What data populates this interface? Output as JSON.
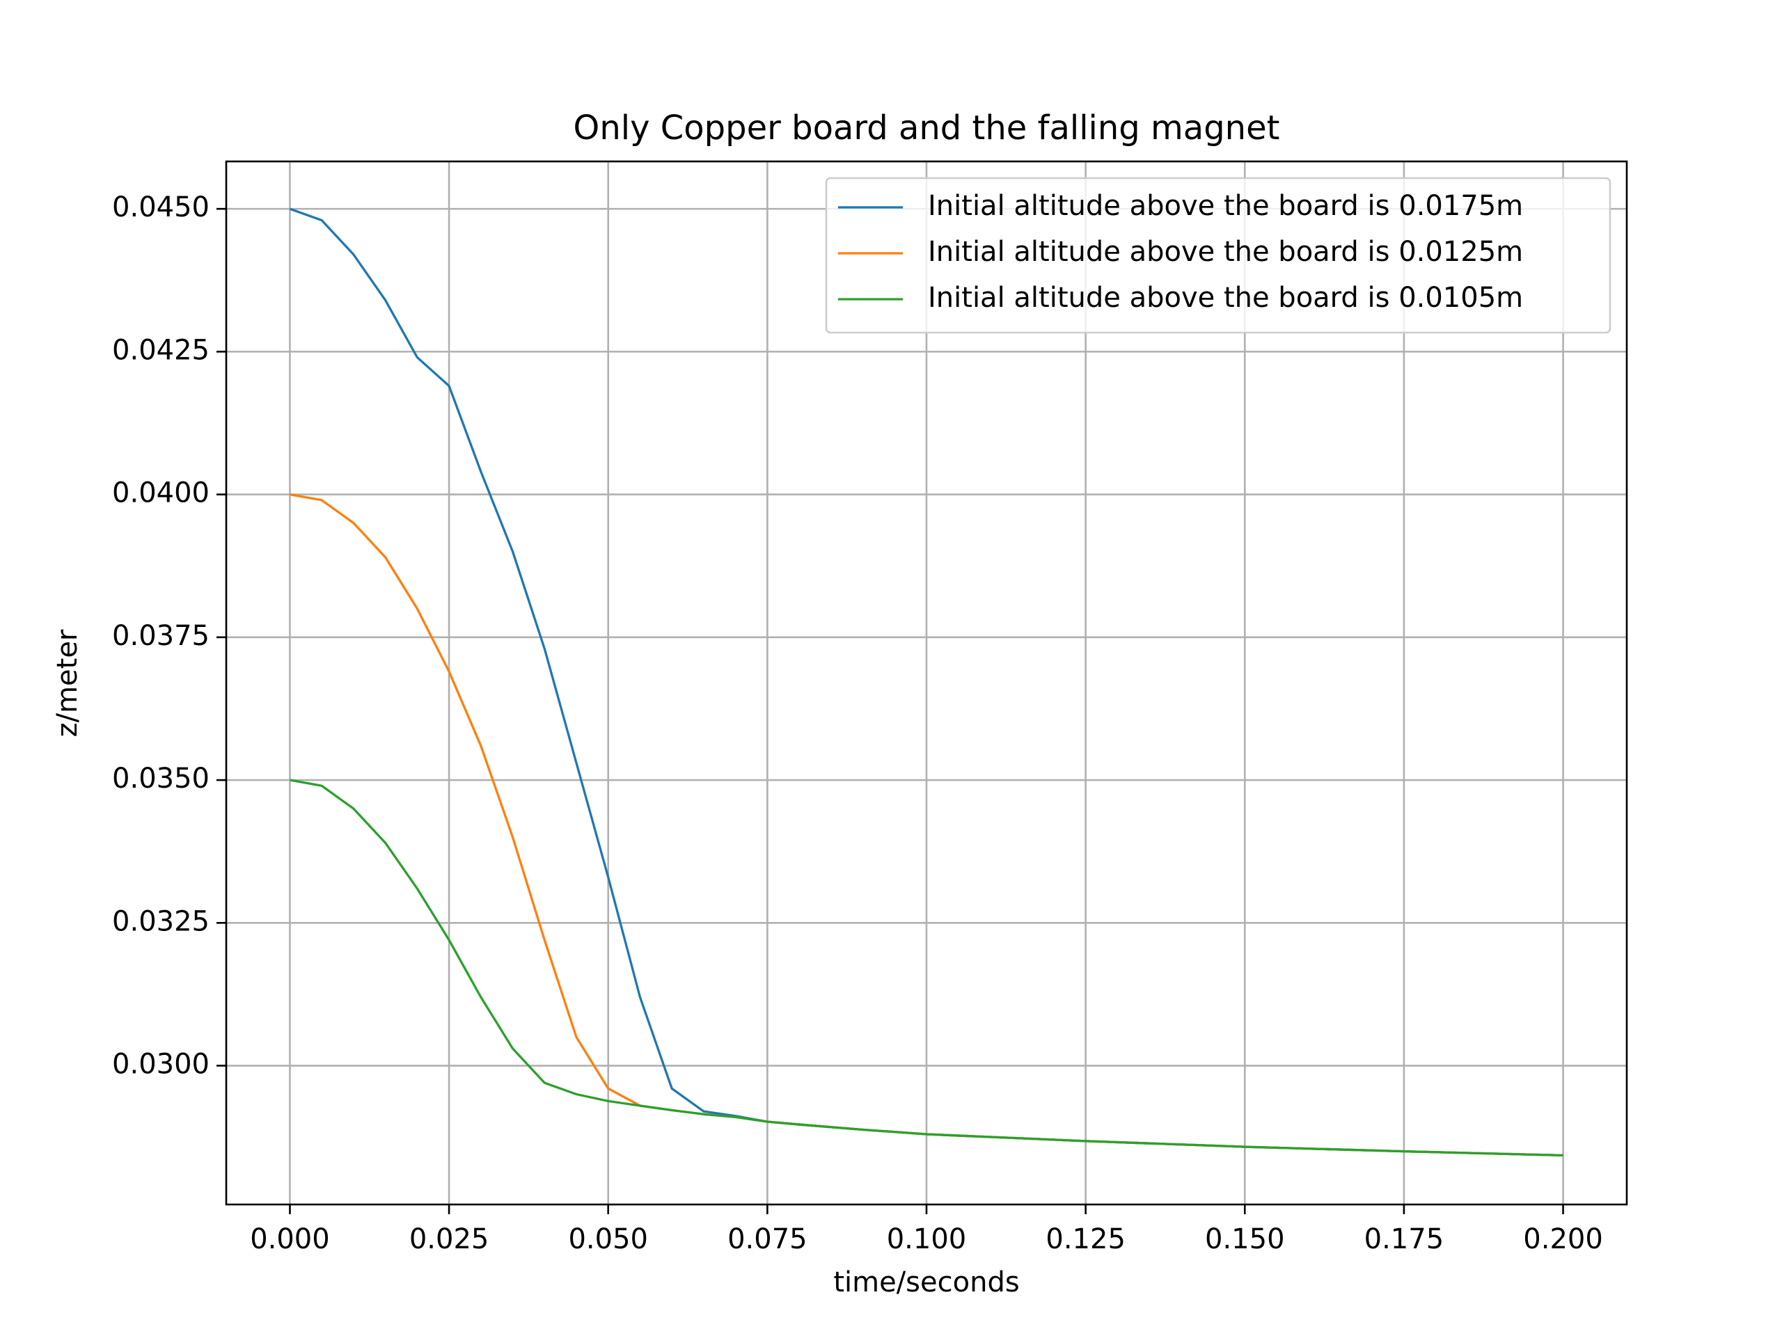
{
  "chart_data": {
    "type": "line",
    "title": "Only Copper board and the falling magnet",
    "x_label": "time/seconds",
    "y_label": "z/meter",
    "x": [
      0,
      0.005,
      0.01,
      0.015,
      0.02,
      0.025,
      0.03,
      0.035,
      0.04,
      0.045,
      0.05,
      0.055,
      0.06,
      0.065,
      0.07,
      0.075,
      0.08,
      0.09,
      0.1,
      0.125,
      0.15,
      0.175,
      0.2
    ],
    "series": [
      {
        "name": "Initial altitude above the board is 0.0175m",
        "color": "#1f77b4",
        "values": [
          0.045,
          0.0448,
          0.0442,
          0.0434,
          0.0424,
          0.0419,
          0.0404,
          0.039,
          0.0373,
          0.0353,
          0.0333,
          0.0312,
          0.0296,
          0.0292,
          0.02912,
          0.02902,
          0.02897,
          0.02888,
          0.0288,
          0.02868,
          0.02858,
          0.0285,
          0.02843
        ]
      },
      {
        "name": "Initial altitude above the board is 0.0125m",
        "color": "#ff7f0e",
        "values": [
          0.04,
          0.0399,
          0.0395,
          0.0389,
          0.038,
          0.0369,
          0.0356,
          0.034,
          0.0322,
          0.0305,
          0.0296,
          0.0293,
          0.02922,
          0.02915,
          0.0291,
          0.02902,
          0.02897,
          0.02888,
          0.0288,
          0.02868,
          0.02858,
          0.0285,
          0.02843
        ]
      },
      {
        "name": "Initial altitude above the board is 0.0105m",
        "color": "#2ca02c",
        "values": [
          0.035,
          0.0349,
          0.0345,
          0.0339,
          0.0331,
          0.0322,
          0.0312,
          0.0303,
          0.0297,
          0.0295,
          0.02938,
          0.0293,
          0.02922,
          0.02915,
          0.0291,
          0.02902,
          0.02897,
          0.02888,
          0.0288,
          0.02868,
          0.02858,
          0.0285,
          0.02843
        ]
      }
    ],
    "xlim": [
      -0.01,
      0.21
    ],
    "ylim": [
      0.02757,
      0.04583
    ],
    "xticks": [
      {
        "value": 0,
        "label": "0.000"
      },
      {
        "value": 0.025,
        "label": "0.025"
      },
      {
        "value": 0.05,
        "label": "0.050"
      },
      {
        "value": 0.075,
        "label": "0.075"
      },
      {
        "value": 0.1,
        "label": "0.100"
      },
      {
        "value": 0.125,
        "label": "0.125"
      },
      {
        "value": 0.15,
        "label": "0.150"
      },
      {
        "value": 0.175,
        "label": "0.175"
      },
      {
        "value": 0.2,
        "label": "0.200"
      }
    ],
    "yticks": [
      {
        "value": 0.03,
        "label": "0.0300"
      },
      {
        "value": 0.0325,
        "label": "0.0325"
      },
      {
        "value": 0.035,
        "label": "0.0350"
      },
      {
        "value": 0.0375,
        "label": "0.0375"
      },
      {
        "value": 0.04,
        "label": "0.0400"
      },
      {
        "value": 0.0425,
        "label": "0.0425"
      },
      {
        "value": 0.045,
        "label": "0.0450"
      }
    ],
    "grid": true,
    "legend": "upper-right"
  }
}
